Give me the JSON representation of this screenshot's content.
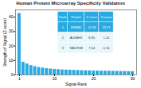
{
  "chart_data": {
    "type": "bar",
    "title": "Human Protein Microarray Specificity Validation",
    "xlabel": "Signal Rank",
    "ylabel": "Strength of Signal (Z score)",
    "x": [
      1,
      2,
      3,
      4,
      5,
      6,
      7,
      8,
      9,
      10,
      11,
      12,
      13,
      14,
      15,
      16,
      17,
      18,
      19,
      20,
      21,
      22,
      23,
      24,
      25,
      26,
      27,
      28,
      29,
      30
    ],
    "values": [
      42.58,
      8.85,
      7.64,
      6.5,
      5.8,
      5.2,
      4.8,
      4.4,
      4.1,
      3.9,
      3.7,
      3.5,
      3.4,
      3.3,
      3.2,
      3.1,
      3.0,
      2.9,
      2.85,
      2.8,
      2.75,
      2.7,
      2.65,
      2.6,
      2.55,
      2.5,
      2.45,
      2.4,
      2.35,
      2.3
    ],
    "color": "#29abe2",
    "xlim": [
      0,
      31
    ],
    "xticks": [
      1,
      10,
      20,
      30
    ],
    "ylim": [
      0,
      45
    ],
    "yticks": [
      0,
      10,
      20,
      30,
      40
    ],
    "grid": false,
    "table": {
      "headers": [
        "Rank",
        "Protein",
        "Z score",
        "S score"
      ],
      "rows": [
        [
          "1",
          "ERBB2",
          "42.58",
          "33.71"
        ],
        [
          "2",
          "ALKBH3",
          "8.85",
          "1.21"
        ],
        [
          "3",
          "TAS2R38",
          "7.64",
          "0.16"
        ]
      ]
    }
  }
}
